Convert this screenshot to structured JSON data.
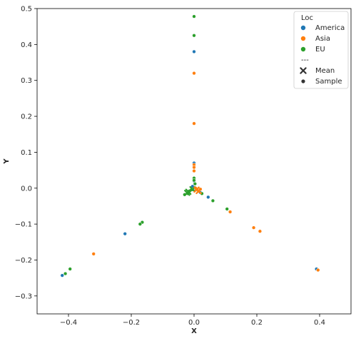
{
  "colors": {
    "America": "#1f77b4",
    "Asia": "#ff7f0e",
    "EU": "#2ca02c",
    "marker_key": "#333333"
  },
  "chart_data": {
    "type": "scatter",
    "xlabel": "X",
    "ylabel": "Y",
    "xlim": [
      -0.5,
      0.5
    ],
    "ylim": [
      -0.35,
      0.5
    ],
    "xticks": [
      -0.4,
      -0.2,
      0.0,
      0.2,
      0.4
    ],
    "xtick_labels": [
      "−0.4",
      "−0.2",
      "0.0",
      "0.2",
      "0.4"
    ],
    "yticks": [
      -0.3,
      -0.2,
      -0.1,
      0.0,
      0.1,
      0.2,
      0.3,
      0.4,
      0.5
    ],
    "ytick_labels": [
      "−0.3",
      "−0.2",
      "−0.1",
      "0.0",
      "0.1",
      "0.2",
      "0.3",
      "0.4",
      "0.5"
    ],
    "grid": false,
    "legend": {
      "title": "Loc",
      "placement": "top-right",
      "entries": [
        {
          "label": "America",
          "kind": "hue",
          "series": "America"
        },
        {
          "label": "Asia",
          "kind": "hue",
          "series": "Asia"
        },
        {
          "label": "EU",
          "kind": "hue",
          "series": "EU"
        },
        {
          "label": "---",
          "kind": "separator"
        },
        {
          "label": "Mean",
          "kind": "marker",
          "marker": "x"
        },
        {
          "label": "Sample",
          "kind": "marker",
          "marker": "o"
        }
      ]
    },
    "series": [
      {
        "name": "America",
        "marker": "o",
        "points": [
          [
            0.0,
            0.38
          ],
          [
            0.0,
            0.07
          ],
          [
            0.0,
            0.02
          ],
          [
            -0.005,
            0.005
          ],
          [
            0.005,
            -0.005
          ],
          [
            0.01,
            -0.005
          ],
          [
            0.02,
            -0.012
          ],
          [
            0.045,
            -0.025
          ],
          [
            -0.22,
            -0.127
          ],
          [
            -0.42,
            -0.243
          ],
          [
            0.39,
            -0.225
          ]
        ]
      },
      {
        "name": "Asia",
        "marker": "o",
        "points": [
          [
            0.0,
            0.32
          ],
          [
            0.0,
            0.18
          ],
          [
            0.0,
            0.065
          ],
          [
            0.0,
            0.058
          ],
          [
            0.0,
            0.048
          ],
          [
            0.005,
            0.0
          ],
          [
            0.012,
            -0.005
          ],
          [
            0.02,
            -0.003
          ],
          [
            0.115,
            -0.066
          ],
          [
            0.19,
            -0.11
          ],
          [
            0.21,
            -0.12
          ],
          [
            -0.32,
            -0.183
          ],
          [
            0.395,
            -0.228
          ]
        ]
      },
      {
        "name": "EU",
        "marker": "o",
        "points": [
          [
            0.0,
            0.478
          ],
          [
            0.0,
            0.425
          ],
          [
            0.0,
            0.028
          ],
          [
            0.0,
            0.022
          ],
          [
            0.003,
            0.012
          ],
          [
            -0.005,
            -0.004
          ],
          [
            -0.015,
            -0.008
          ],
          [
            -0.02,
            -0.015
          ],
          [
            -0.03,
            -0.018
          ],
          [
            0.025,
            -0.015
          ],
          [
            0.06,
            -0.035
          ],
          [
            0.105,
            -0.058
          ],
          [
            -0.165,
            -0.095
          ],
          [
            -0.172,
            -0.1
          ],
          [
            -0.395,
            -0.225
          ],
          [
            -0.41,
            -0.238
          ]
        ]
      },
      {
        "name": "EU",
        "marker": "x",
        "points": [
          [
            -0.018,
            -0.01
          ],
          [
            -0.005,
            -0.003
          ],
          [
            -0.022,
            -0.013
          ]
        ]
      },
      {
        "name": "Asia",
        "marker": "x",
        "points": [
          [
            0.008,
            -0.004
          ],
          [
            0.015,
            -0.008
          ]
        ]
      }
    ]
  }
}
